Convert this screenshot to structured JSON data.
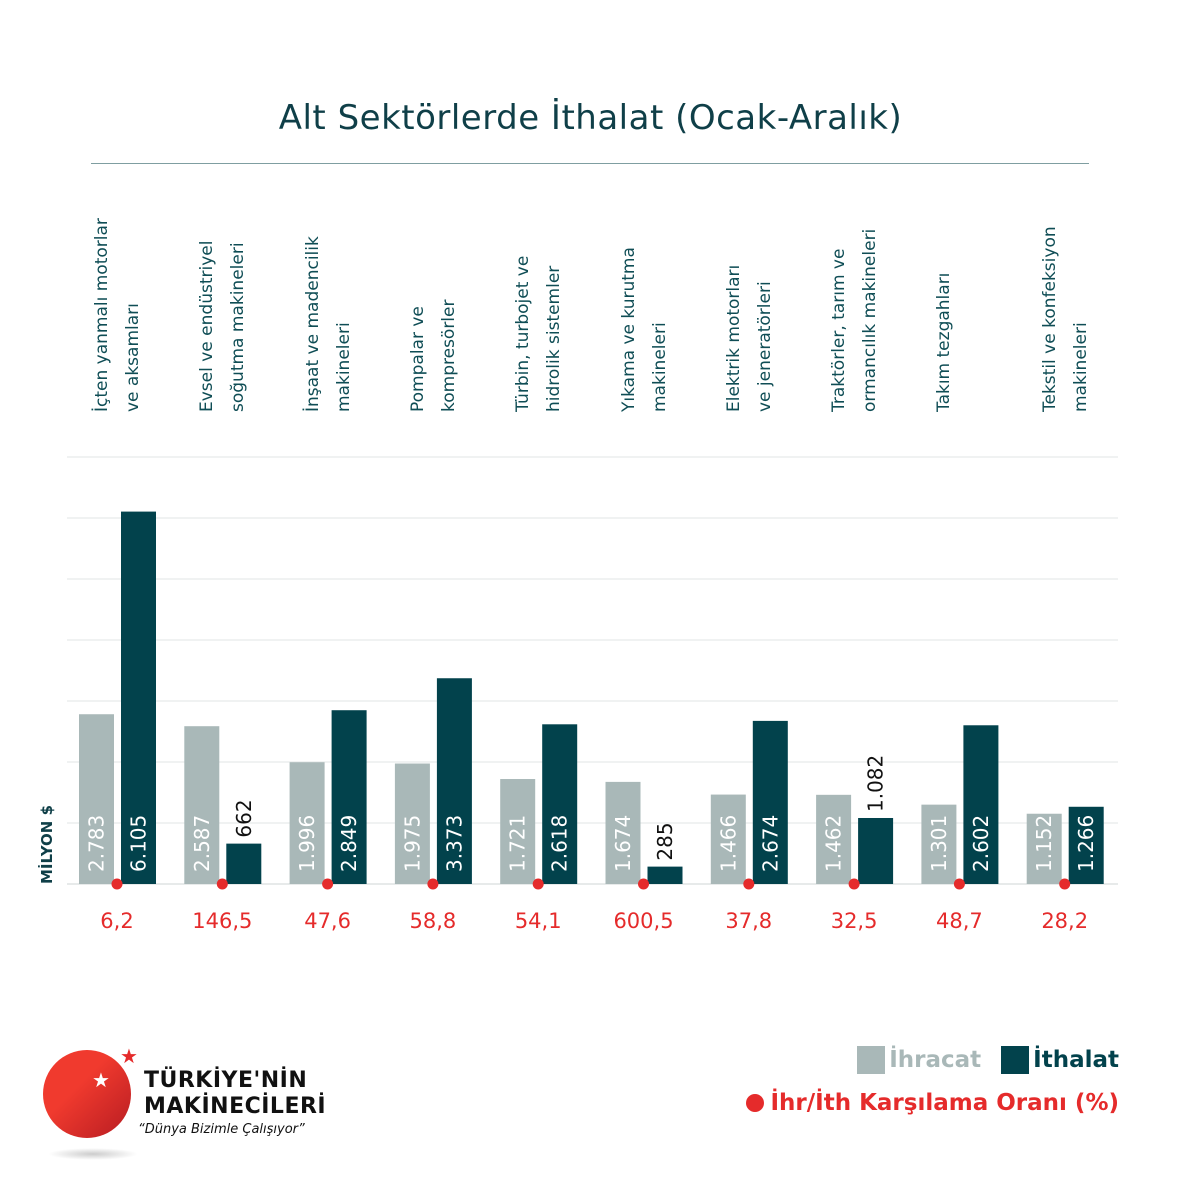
{
  "title": "Alt Sektörlerde İthalat (Ocak-Aralık)",
  "chart_data": {
    "type": "bar",
    "title": "Alt Sektörlerde İthalat (Ocak-Aralık)",
    "ylabel": "MİLYON $",
    "ylim": [
      0,
      7000
    ],
    "grid": true,
    "legend_position": "bottom-right",
    "categories": [
      "İçten yanmalı motorlar\nve aksamları",
      "Evsel ve endüstriyel\nsoğutma makineleri",
      "İnşaat ve madencilik\nmakineleri",
      "Pompalar ve\nkompresörler",
      "Türbin, turbojet ve\nhidrolik sistemler",
      "Yıkama ve kurutma\nmakineleri",
      "Elektrik motorları\nve jeneratörleri",
      "Traktörler, tarım ve\normancılık makineleri",
      "Takım tezgahları",
      "Tekstil ve konfeksiyon\nmakineleri"
    ],
    "series": [
      {
        "name": "İhracat",
        "color": "#a9b8b8",
        "values": [
          2783,
          2587,
          1996,
          1975,
          1721,
          1674,
          1466,
          1462,
          1301,
          1152
        ],
        "labels": [
          "2.783",
          "2.587",
          "1.996",
          "1.975",
          "1.721",
          "1.674",
          "1.466",
          "1.462",
          "1.301",
          "1.152"
        ]
      },
      {
        "name": "İthalat",
        "color": "#02424c",
        "values": [
          6105,
          662,
          2849,
          3373,
          2618,
          285,
          2674,
          1082,
          2602,
          1266
        ],
        "labels": [
          "6.105",
          "662",
          "2.849",
          "3.373",
          "2.618",
          "285",
          "2.674",
          "1.082",
          "2.602",
          "1.266"
        ]
      }
    ],
    "ratio": {
      "name": "İhr/İth Karşılama Oranı (%)",
      "color": "#e52b2b",
      "values": [
        6.2,
        146.5,
        47.6,
        58.8,
        54.1,
        600.5,
        37.8,
        32.5,
        48.7,
        28.2
      ],
      "labels": [
        "6,2",
        "146,5",
        "47,6",
        "58,8",
        "54,1",
        "600,5",
        "37,8",
        "32,5",
        "48,7",
        "28,2"
      ]
    }
  },
  "legend": {
    "export": "İhracat",
    "import": "İthalat",
    "ratio": "İhr/İth Karşılama Oranı (%)"
  },
  "logo": {
    "line1": "TÜRKİYE'NİN",
    "line2": "MAKİNECİLERİ",
    "slogan": "“Dünya Bizimle Çalışıyor”"
  }
}
